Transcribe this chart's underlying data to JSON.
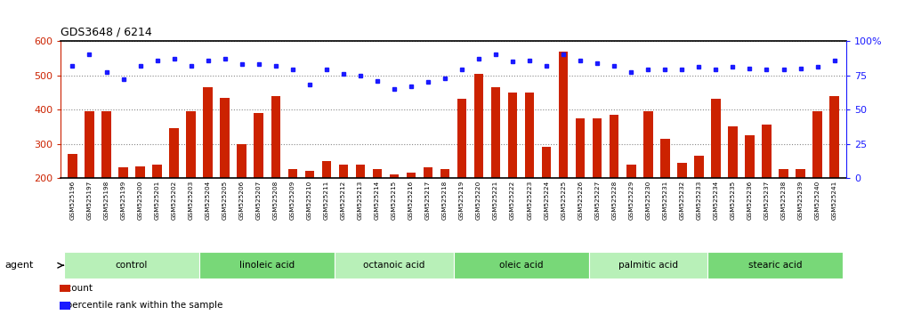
{
  "title": "GDS3648 / 6214",
  "samples": [
    "GSM525196",
    "GSM525197",
    "GSM525198",
    "GSM525199",
    "GSM525200",
    "GSM525201",
    "GSM525202",
    "GSM525203",
    "GSM525204",
    "GSM525205",
    "GSM525206",
    "GSM525207",
    "GSM525208",
    "GSM525209",
    "GSM525210",
    "GSM525211",
    "GSM525212",
    "GSM525213",
    "GSM525214",
    "GSM525215",
    "GSM525216",
    "GSM525217",
    "GSM525218",
    "GSM525219",
    "GSM525220",
    "GSM525221",
    "GSM525222",
    "GSM525223",
    "GSM525224",
    "GSM525225",
    "GSM525226",
    "GSM525227",
    "GSM525228",
    "GSM525229",
    "GSM525230",
    "GSM525231",
    "GSM525232",
    "GSM525233",
    "GSM525234",
    "GSM525235",
    "GSM525236",
    "GSM525237",
    "GSM525238",
    "GSM525239",
    "GSM525240",
    "GSM525241"
  ],
  "counts": [
    270,
    395,
    395,
    230,
    235,
    240,
    345,
    395,
    465,
    435,
    300,
    390,
    440,
    225,
    220,
    250,
    240,
    240,
    225,
    210,
    215,
    230,
    225,
    430,
    505,
    465,
    450,
    450,
    290,
    570,
    375,
    375,
    385,
    240,
    395,
    315,
    245,
    265,
    430,
    350,
    325,
    355,
    225,
    225,
    395,
    440
  ],
  "percentile_ranks": [
    82,
    90,
    77,
    72,
    82,
    86,
    87,
    82,
    86,
    87,
    83,
    83,
    82,
    79,
    68,
    79,
    76,
    75,
    71,
    65,
    67,
    70,
    73,
    79,
    87,
    90,
    85,
    86,
    82,
    90,
    86,
    84,
    82,
    77,
    79,
    79,
    79,
    81,
    79,
    81,
    80,
    79,
    79,
    80,
    81,
    86
  ],
  "groups": [
    {
      "label": "control",
      "start": 0,
      "end": 7
    },
    {
      "label": "linoleic acid",
      "start": 8,
      "end": 15
    },
    {
      "label": "octanoic acid",
      "start": 16,
      "end": 22
    },
    {
      "label": "oleic acid",
      "start": 23,
      "end": 30
    },
    {
      "label": "palmitic acid",
      "start": 31,
      "end": 37
    },
    {
      "label": "stearic acid",
      "start": 38,
      "end": 45
    }
  ],
  "ylim_left": [
    200,
    600
  ],
  "ylim_right": [
    0,
    100
  ],
  "yticks_left": [
    200,
    300,
    400,
    500,
    600
  ],
  "yticks_right": [
    0,
    25,
    50,
    75,
    100
  ],
  "ytick_right_labels": [
    "0",
    "25",
    "50",
    "75",
    "100%"
  ],
  "bar_color": "#cc2200",
  "dot_color": "#1a1aff",
  "group_colors_alt": [
    "#b8f0b8",
    "#78d878"
  ],
  "xtick_bg": "#d0d0d0",
  "dotted_line_color": "#888888",
  "fig_width": 10.17,
  "fig_height": 3.54,
  "dpi": 100
}
